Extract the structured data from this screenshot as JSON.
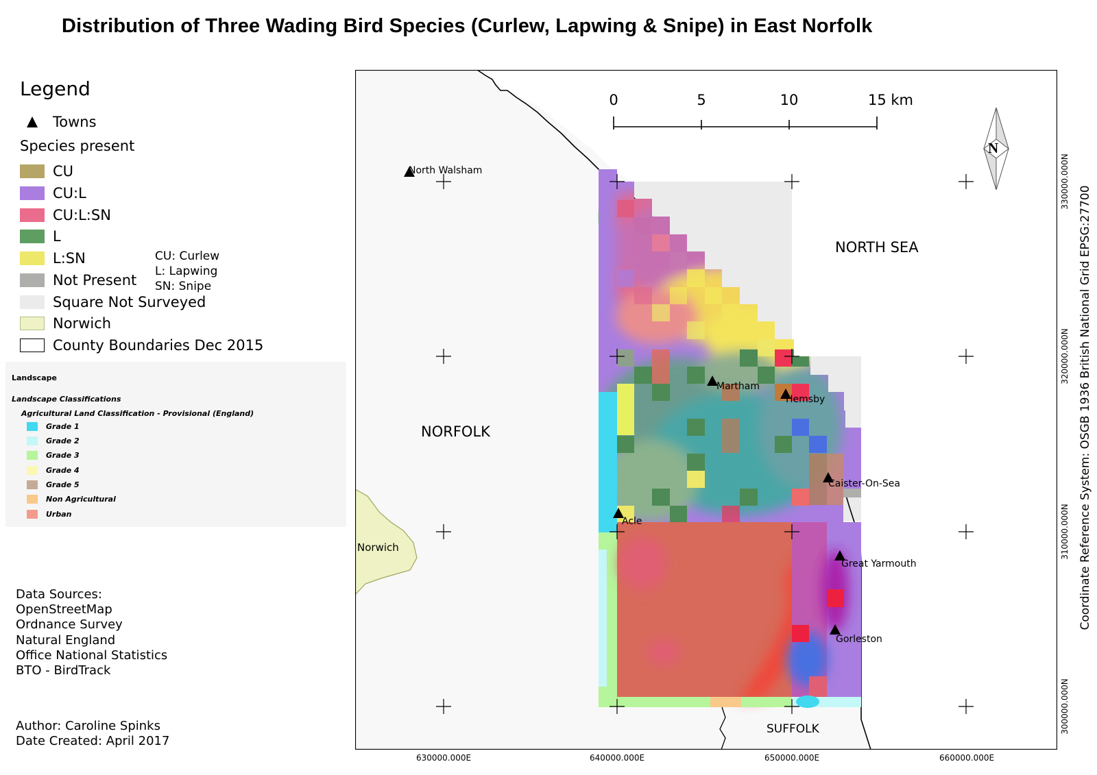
{
  "title": "Distribution of Three Wading Bird Species (Curlew, Lapwing & Snipe) in East Norfolk",
  "legend": {
    "heading": "Legend",
    "towns_label": "Towns",
    "species_heading": "Species present",
    "items": [
      {
        "label": "CU",
        "color": "#b5a566"
      },
      {
        "label": "CU:L",
        "color": "#a97ee0"
      },
      {
        "label": "CU:L:SN",
        "color": "#eb6d8e"
      },
      {
        "label": "L",
        "color": "#5e9e61"
      },
      {
        "label": "L:SN",
        "color": "#ede76a"
      },
      {
        "label": "Not Present",
        "color": "#aeaeaa"
      },
      {
        "label": "Square Not Surveyed",
        "color": "#ebebeb"
      },
      {
        "label": "Norwich",
        "color": "#eef2c4"
      },
      {
        "label": "County Boundaries Dec 2015",
        "color": "#ffffff"
      }
    ],
    "abbreviations": [
      "CU: Curlew",
      "L: Lapwing",
      "SN: Snipe"
    ]
  },
  "landscape": {
    "title": "Landscape",
    "subtitle": "Landscape Classifications",
    "classification": "Agricultural Land Classification - Provisional (England)",
    "grades": [
      {
        "label": "Grade 1",
        "color": "#41d8f0"
      },
      {
        "label": "Grade 2",
        "color": "#c4f7f7"
      },
      {
        "label": "Grade 3",
        "color": "#b6f59b"
      },
      {
        "label": "Grade 4",
        "color": "#fbf8b3"
      },
      {
        "label": "Grade 5",
        "color": "#c4ab97"
      },
      {
        "label": "Non Agricultural",
        "color": "#f8c98a"
      },
      {
        "label": "Urban",
        "color": "#f49c8b"
      }
    ]
  },
  "sources": {
    "heading": "Data Sources:",
    "items": [
      "OpenStreetMap",
      "Ordnance Survey",
      "Natural England",
      "Office National Statistics",
      "BTO - BirdTrack"
    ]
  },
  "author": "Author: Caroline Spinks",
  "date_created": "Date Created: April 2017",
  "map": {
    "crs_label": "Coordinate Reference System: OSGB 1936 British National Grid EPSG:27700",
    "x_ticks": [
      "630000.000E",
      "640000.000E",
      "650000.000E",
      "660000.000E"
    ],
    "y_ticks": [
      "330000.000N",
      "320000.000N",
      "310000.000N",
      "300000.000N"
    ],
    "scale_labels": [
      "0",
      "5",
      "10",
      "15 km"
    ],
    "north_label": "N",
    "regions": {
      "norfolk": "NORFOLK",
      "north_sea": "NORTH SEA",
      "suffolk": "SUFFOLK",
      "norwich": "Norwich"
    },
    "towns": [
      "North Walsham",
      "Martham",
      "Hemsby",
      "Caister-On-Sea",
      "Acle",
      "Great Yarmouth",
      "Gorleston"
    ]
  }
}
